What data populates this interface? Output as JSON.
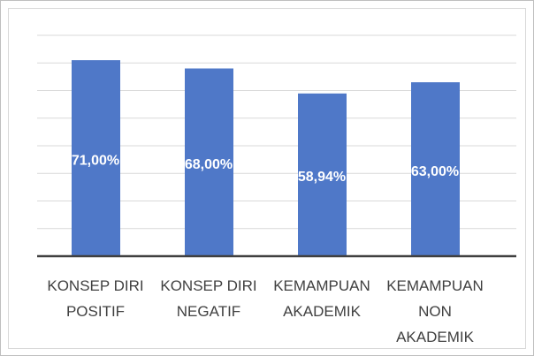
{
  "chart_data": {
    "type": "bar",
    "categories": [
      "KONSEP DIRI POSITIF",
      "KONSEP DIRI NEGATIF",
      "KEMAMPUAN AKADEMIK",
      "KEMAMPUAN NON AKADEMIK"
    ],
    "values": [
      71,
      68,
      58.94,
      63
    ],
    "value_labels": [
      "71,00%",
      "68,00%",
      "58,94%",
      "63,00%"
    ],
    "color": "#4f78c8",
    "ylim": [
      0,
      80
    ],
    "yticks": [
      0,
      10,
      20,
      30,
      40,
      50,
      60,
      70,
      80
    ],
    "ytick_labels_visible": false,
    "grid": true
  }
}
